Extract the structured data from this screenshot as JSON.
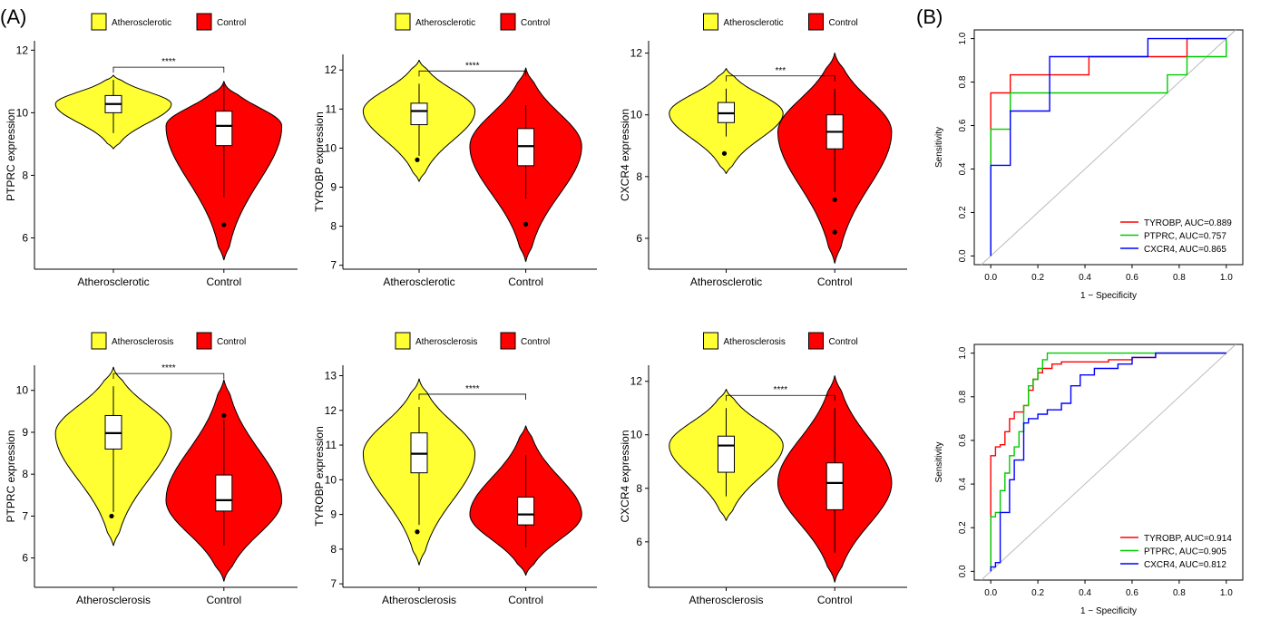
{
  "panel_labels": {
    "a": "(A)",
    "b": "(B)"
  },
  "colors": {
    "group1": "#ffff33",
    "group2": "#ff0000",
    "roc_red": "#ff0000",
    "roc_green": "#00cc00",
    "roc_blue": "#0000ff",
    "diagonal": "#bbbbbb"
  },
  "chart_data": [
    {
      "type": "violin",
      "dataset": "top",
      "legend": [
        "Atherosclerotic",
        "Control"
      ],
      "categories": [
        "Atherosclerotic",
        "Control"
      ],
      "ylabel": "PTPRC expression",
      "yticks": [
        6,
        8,
        10,
        12
      ],
      "ylim": [
        5.0,
        12.3
      ],
      "significance": "****",
      "groups": [
        {
          "name": "Atherosclerotic",
          "min": 8.85,
          "max": 11.2,
          "q1": 10.0,
          "median": 10.28,
          "q3": 10.55,
          "whisker_low": 9.35,
          "whisker_high": 11.05,
          "outliers": []
        },
        {
          "name": "Control",
          "min": 5.3,
          "max": 11.0,
          "q1": 8.95,
          "median": 9.58,
          "q3": 10.05,
          "whisker_low": 7.3,
          "whisker_high": 10.9,
          "outliers": [
            6.42
          ]
        }
      ]
    },
    {
      "type": "violin",
      "dataset": "top",
      "legend": [
        "Atherosclerotic",
        "Control"
      ],
      "categories": [
        "Atherosclerotic",
        "Control"
      ],
      "ylabel": "TYROBP expression",
      "yticks": [
        7,
        8,
        9,
        10,
        11,
        12
      ],
      "ylim": [
        6.9,
        12.4
      ],
      "significance": "****",
      "groups": [
        {
          "name": "Atherosclerotic",
          "min": 9.15,
          "max": 12.25,
          "q1": 10.6,
          "median": 10.95,
          "q3": 11.15,
          "whisker_low": 9.8,
          "whisker_high": 11.65,
          "outliers": [
            9.7
          ]
        },
        {
          "name": "Control",
          "min": 7.1,
          "max": 12.05,
          "q1": 9.55,
          "median": 10.05,
          "q3": 10.5,
          "whisker_low": 8.7,
          "whisker_high": 11.1,
          "outliers": [
            8.05
          ]
        }
      ]
    },
    {
      "type": "violin",
      "dataset": "top",
      "legend": [
        "Atherosclerotic",
        "Control"
      ],
      "categories": [
        "Atherosclerotic",
        "Control"
      ],
      "ylabel": "CXCR4 expression",
      "yticks": [
        6,
        8,
        10,
        12
      ],
      "ylim": [
        5.0,
        12.4
      ],
      "significance": "***",
      "groups": [
        {
          "name": "Atherosclerotic",
          "min": 8.1,
          "max": 11.5,
          "q1": 9.75,
          "median": 10.05,
          "q3": 10.4,
          "whisker_low": 9.3,
          "whisker_high": 10.85,
          "outliers": [
            8.75
          ]
        },
        {
          "name": "Control",
          "min": 5.2,
          "max": 12.0,
          "q1": 8.9,
          "median": 9.45,
          "q3": 10.0,
          "whisker_low": 7.5,
          "whisker_high": 10.85,
          "outliers": [
            7.25,
            6.2
          ]
        }
      ]
    },
    {
      "type": "violin",
      "dataset": "bottom",
      "legend": [
        "Atherosclerosis",
        "Control"
      ],
      "categories": [
        "Atherosclerosis",
        "Control"
      ],
      "ylabel": "PTPRC expression",
      "yticks": [
        6,
        7,
        8,
        9,
        10
      ],
      "ylim": [
        5.3,
        10.6
      ],
      "significance": "****",
      "groups": [
        {
          "name": "Atherosclerosis",
          "min": 6.3,
          "max": 10.55,
          "q1": 8.6,
          "median": 8.98,
          "q3": 9.4,
          "whisker_low": 7.1,
          "whisker_high": 10.1,
          "outliers": [
            7.0
          ]
        },
        {
          "name": "Control",
          "min": 5.45,
          "max": 10.25,
          "q1": 7.12,
          "median": 7.38,
          "q3": 7.98,
          "whisker_low": 6.3,
          "whisker_high": 9.3,
          "outliers": [
            9.4
          ]
        }
      ]
    },
    {
      "type": "violin",
      "dataset": "bottom",
      "legend": [
        "Atherosclerosis",
        "Control"
      ],
      "categories": [
        "Atherosclerosis",
        "Control"
      ],
      "ylabel": "TYROBP expression",
      "yticks": [
        7,
        8,
        9,
        10,
        11,
        12,
        13
      ],
      "ylim": [
        6.9,
        13.3
      ],
      "significance": "****",
      "groups": [
        {
          "name": "Atherosclerosis",
          "min": 7.55,
          "max": 12.9,
          "q1": 10.2,
          "median": 10.75,
          "q3": 11.35,
          "whisker_low": 8.7,
          "whisker_high": 12.1,
          "outliers": [
            8.5
          ]
        },
        {
          "name": "Control",
          "min": 7.25,
          "max": 11.55,
          "q1": 8.7,
          "median": 9.0,
          "q3": 9.5,
          "whisker_low": 8.05,
          "whisker_high": 10.7,
          "outliers": []
        }
      ]
    },
    {
      "type": "violin",
      "dataset": "bottom",
      "legend": [
        "Atherosclerosis",
        "Control"
      ],
      "categories": [
        "Atherosclerosis",
        "Control"
      ],
      "ylabel": "CXCR4 expression",
      "yticks": [
        6,
        8,
        10,
        12
      ],
      "ylim": [
        4.3,
        12.6
      ],
      "significance": "****",
      "groups": [
        {
          "name": "Atherosclerosis",
          "min": 6.8,
          "max": 11.7,
          "q1": 8.6,
          "median": 9.6,
          "q3": 9.95,
          "whisker_low": 7.7,
          "whisker_high": 11.0,
          "outliers": []
        },
        {
          "name": "Control",
          "min": 4.5,
          "max": 12.2,
          "q1": 7.2,
          "median": 8.2,
          "q3": 8.95,
          "whisker_low": 5.6,
          "whisker_high": 11.0,
          "outliers": []
        }
      ]
    },
    {
      "type": "line",
      "dataset": "top",
      "xlabel": "1 − Specificity",
      "ylabel": "Sensitivity",
      "xticks": [
        0.0,
        0.2,
        0.4,
        0.6,
        0.8,
        1.0
      ],
      "yticks": [
        0.0,
        0.2,
        0.4,
        0.6,
        0.8,
        1.0
      ],
      "xlim": [
        -0.07,
        1.07
      ],
      "ylim": [
        -0.04,
        1.04
      ],
      "series": [
        {
          "name": "TYROBP, AUC=0.889",
          "color": "#ff0000",
          "x": [
            0,
            0,
            0,
            0.083,
            0.083,
            0.25,
            0.25,
            0.417,
            0.417,
            0.583,
            0.583,
            0.833,
            0.833,
            1.0
          ],
          "y": [
            0,
            0.5,
            0.75,
            0.75,
            0.833,
            0.833,
            0.833,
            0.833,
            0.917,
            0.917,
            0.917,
            0.917,
            1.0,
            1.0
          ]
        },
        {
          "name": "PTPRC, AUC=0.757",
          "color": "#00cc00",
          "x": [
            0,
            0,
            0.083,
            0.083,
            0.25,
            0.25,
            0.75,
            0.75,
            0.833,
            0.833,
            1.0,
            1.0
          ],
          "y": [
            0,
            0.583,
            0.583,
            0.75,
            0.75,
            0.75,
            0.75,
            0.833,
            0.833,
            0.917,
            0.917,
            1.0
          ]
        },
        {
          "name": "CXCR4, AUC=0.865",
          "color": "#0000ff",
          "x": [
            0,
            0,
            0.083,
            0.083,
            0.25,
            0.25,
            0.583,
            0.583,
            0.667,
            0.667,
            1.0
          ],
          "y": [
            0,
            0.417,
            0.417,
            0.667,
            0.667,
            0.917,
            0.917,
            0.917,
            0.917,
            1.0,
            1.0
          ]
        }
      ],
      "diagonal": true,
      "legend_position": "bottom-right"
    },
    {
      "type": "line",
      "dataset": "bottom",
      "xlabel": "1 − Specificity",
      "ylabel": "Sensitivity",
      "xticks": [
        0.0,
        0.2,
        0.4,
        0.6,
        0.8,
        1.0
      ],
      "yticks": [
        0.0,
        0.2,
        0.4,
        0.6,
        0.8,
        1.0
      ],
      "xlim": [
        -0.07,
        1.07
      ],
      "ylim": [
        -0.04,
        1.04
      ],
      "series": [
        {
          "name": "TYROBP, AUC=0.914",
          "color": "#ff0000",
          "x": [
            0,
            0,
            0.02,
            0.02,
            0.04,
            0.04,
            0.06,
            0.06,
            0.08,
            0.08,
            0.1,
            0.1,
            0.14,
            0.14,
            0.16,
            0.16,
            0.18,
            0.18,
            0.2,
            0.2,
            0.22,
            0.22,
            0.26,
            0.26,
            0.3,
            0.3,
            0.4,
            0.4,
            0.5,
            0.5,
            0.6,
            0.6,
            0.7,
            0.7,
            1.0
          ],
          "y": [
            0,
            0.53,
            0.53,
            0.57,
            0.57,
            0.58,
            0.58,
            0.64,
            0.64,
            0.7,
            0.7,
            0.73,
            0.73,
            0.76,
            0.76,
            0.83,
            0.83,
            0.88,
            0.88,
            0.91,
            0.91,
            0.93,
            0.93,
            0.95,
            0.95,
            0.96,
            0.96,
            0.96,
            0.96,
            0.97,
            0.97,
            0.98,
            0.98,
            1.0,
            1.0
          ]
        },
        {
          "name": "PTPRC, AUC=0.905",
          "color": "#00cc00",
          "x": [
            0,
            0,
            0.02,
            0.02,
            0.04,
            0.04,
            0.06,
            0.06,
            0.08,
            0.08,
            0.1,
            0.1,
            0.12,
            0.12,
            0.14,
            0.14,
            0.16,
            0.16,
            0.18,
            0.18,
            0.2,
            0.2,
            0.22,
            0.22,
            0.24,
            0.24,
            1.0
          ],
          "y": [
            0,
            0.25,
            0.25,
            0.27,
            0.27,
            0.37,
            0.37,
            0.45,
            0.45,
            0.53,
            0.53,
            0.57,
            0.57,
            0.64,
            0.64,
            0.76,
            0.76,
            0.85,
            0.85,
            0.88,
            0.88,
            0.93,
            0.93,
            0.97,
            0.97,
            1.0,
            1.0
          ]
        },
        {
          "name": "CXCR4, AUC=0.812",
          "color": "#0000ff",
          "x": [
            0,
            0,
            0.02,
            0.02,
            0.04,
            0.04,
            0.08,
            0.08,
            0.1,
            0.1,
            0.14,
            0.14,
            0.16,
            0.16,
            0.2,
            0.2,
            0.24,
            0.24,
            0.3,
            0.3,
            0.34,
            0.34,
            0.38,
            0.38,
            0.44,
            0.44,
            0.54,
            0.54,
            0.6,
            0.6,
            0.7,
            0.7,
            1.0
          ],
          "y": [
            0,
            0.02,
            0.02,
            0.04,
            0.04,
            0.27,
            0.27,
            0.42,
            0.42,
            0.51,
            0.51,
            0.68,
            0.68,
            0.7,
            0.7,
            0.72,
            0.72,
            0.74,
            0.74,
            0.77,
            0.77,
            0.85,
            0.85,
            0.9,
            0.9,
            0.93,
            0.93,
            0.95,
            0.95,
            0.98,
            0.98,
            1.0,
            1.0
          ]
        }
      ],
      "diagonal": true,
      "legend_position": "bottom-right"
    }
  ]
}
